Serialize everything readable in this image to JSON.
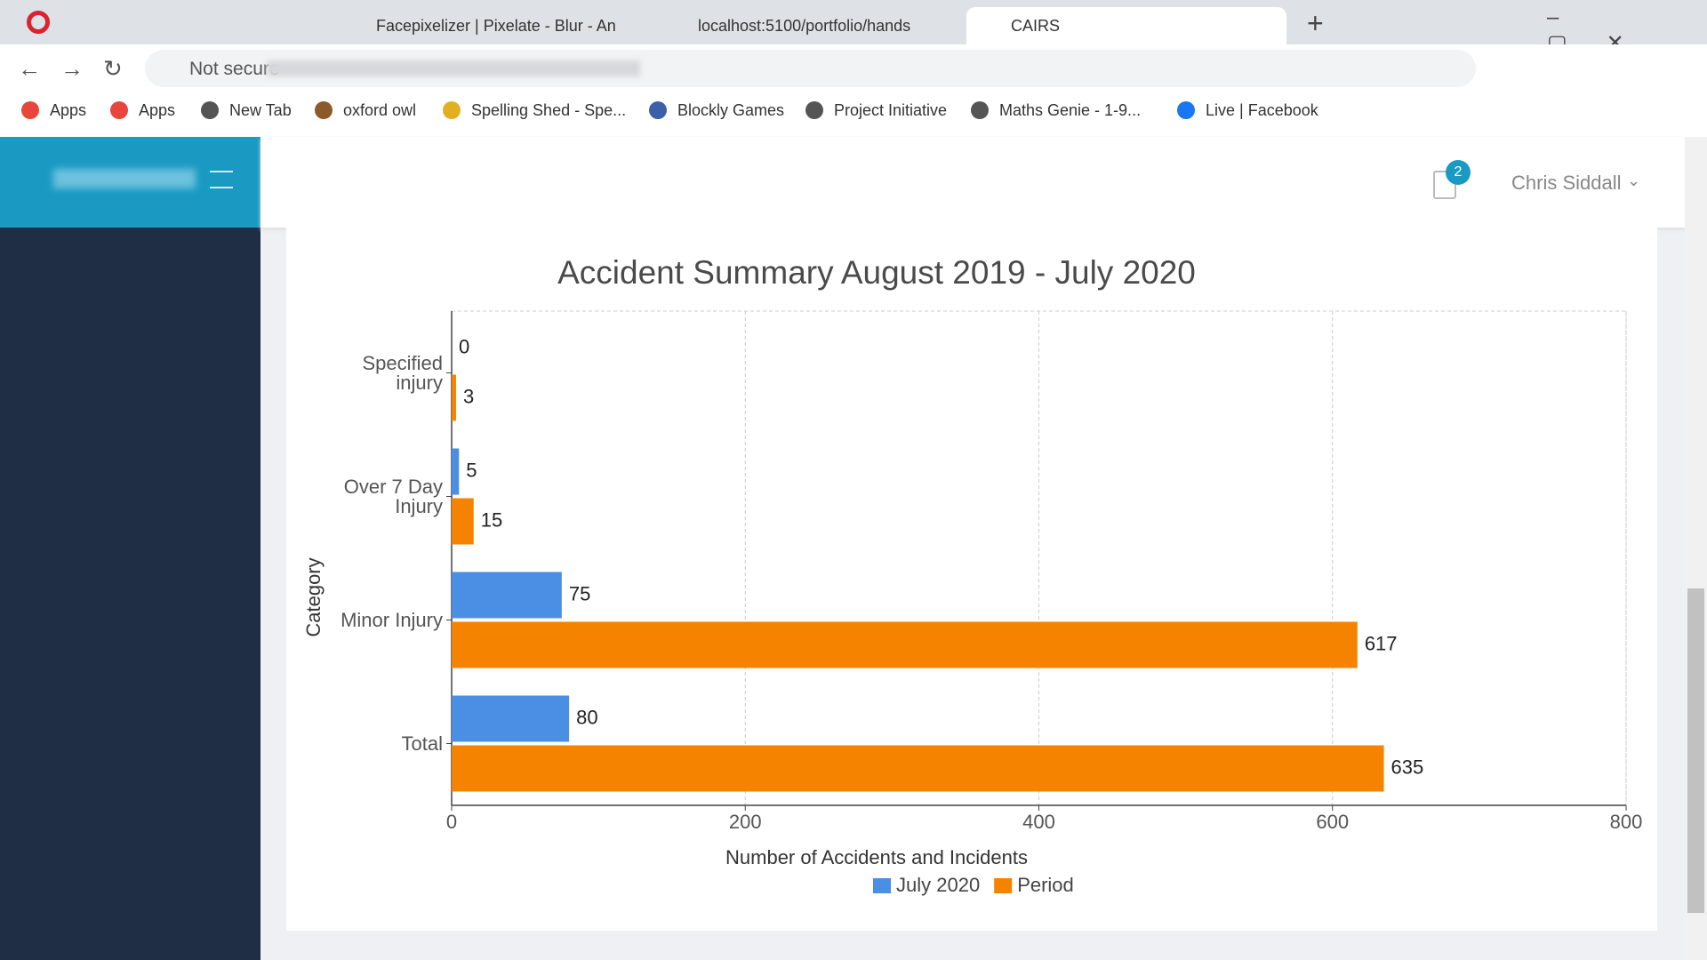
{
  "browser": {
    "tabs": [
      "Facepixelizer | Pixelate - Blur - An",
      "localhost:5100/portfolio/hands",
      "CAIRS"
    ],
    "security": "Not secure",
    "bookmarks": [
      "Apps",
      "Apps",
      "New Tab",
      "oxford owl",
      "Spelling Shed - Spe...",
      "Blockly Games",
      "Project Initiative",
      "Maths Genie - 1-9...",
      "Live | Facebook"
    ]
  },
  "header": {
    "notifications": 2,
    "user": "Chris Siddall"
  },
  "chart_data": {
    "type": "bar",
    "orientation": "horizontal",
    "title": "Accident Summary August 2019 - July 2020",
    "x_label": "Number of Accidents and Incidents",
    "y_label": "Category",
    "categories": [
      "Specified injury",
      "Over 7 Day Injury",
      "Minor Injury",
      "Total"
    ],
    "series": [
      {
        "name": "July 2020",
        "color": "#4a8fe4",
        "values": [
          0,
          5,
          75,
          80
        ]
      },
      {
        "name": "Period",
        "color": "#f58300",
        "values": [
          3,
          15,
          617,
          635
        ]
      }
    ],
    "xlim": [
      0,
      800
    ],
    "xticks": [
      0,
      200,
      400,
      600,
      800
    ],
    "grid": true,
    "legend": "bottom"
  }
}
